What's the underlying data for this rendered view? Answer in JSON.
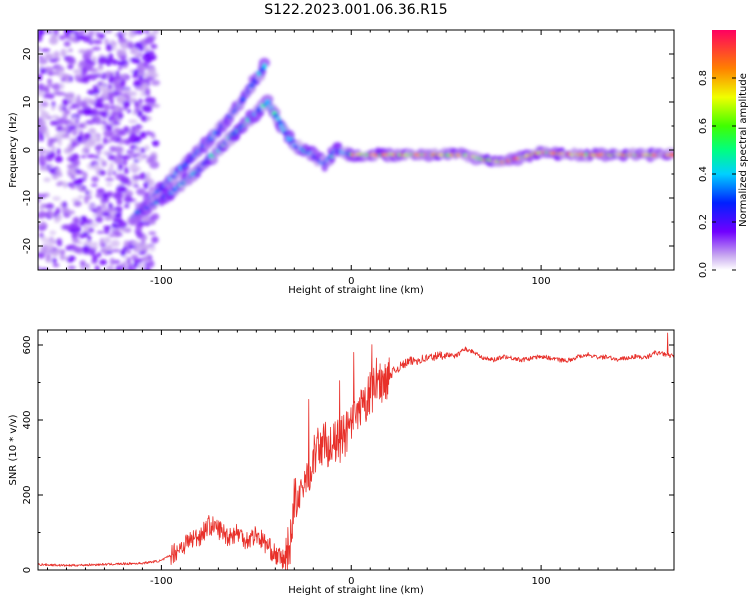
{
  "title": "S122.2023.001.06.36.R15",
  "chart_data": [
    {
      "type": "heatmap",
      "xlabel": "Height of straight line (km)",
      "ylabel": "Frequency (Hz)",
      "xlim": [
        -165,
        170
      ],
      "ylim": [
        -25,
        25
      ],
      "x_ticks": [
        -100,
        0,
        100
      ],
      "y_ticks": [
        -20,
        -10,
        0,
        10,
        20
      ],
      "colorbar": {
        "label": "Normalized spectral amplitude",
        "range": [
          0,
          1
        ],
        "ticks": [
          0.0,
          0.2,
          0.4,
          0.6,
          0.8
        ]
      },
      "ridges": [
        {
          "name": "",
          "points": [
            [
              -115,
              -14
            ],
            [
              -100,
              -8
            ],
            [
              -85,
              -2
            ],
            [
              -70,
              4
            ],
            [
              -58,
              10
            ],
            [
              -48,
              16
            ],
            [
              -45,
              18
            ]
          ]
        },
        {
          "name": "",
          "points": [
            [
              -112,
              -13
            ],
            [
              -95,
              -9
            ],
            [
              -80,
              -4
            ],
            [
              -65,
              2
            ],
            [
              -52,
              7
            ],
            [
              -44,
              10
            ],
            [
              -38,
              6
            ],
            [
              -30,
              1
            ],
            [
              -20,
              -1
            ],
            [
              -14,
              -3
            ],
            [
              -8,
              0
            ],
            [
              0,
              -1
            ],
            [
              40,
              -1
            ],
            [
              60,
              -1
            ],
            [
              70,
              -2
            ],
            [
              80,
              -2.5
            ],
            [
              90,
              -1.5
            ],
            [
              100,
              -0.5
            ],
            [
              120,
              -1
            ],
            [
              150,
              -1
            ],
            [
              170,
              -1
            ]
          ]
        }
      ],
      "noise_region_x": [
        -165,
        -115
      ]
    },
    {
      "type": "line",
      "xlabel": "Height of straight line (km)",
      "ylabel": "SNR (10 * v/v)",
      "xlim": [
        -165,
        170
      ],
      "ylim": [
        0,
        640
      ],
      "x_ticks": [
        -100,
        0,
        100
      ],
      "y_ticks": [
        0,
        200,
        400,
        600
      ],
      "color": "#e8302a",
      "series": [
        {
          "name": "",
          "x": [
            -165,
            -150,
            -130,
            -110,
            -100,
            -95,
            -90,
            -85,
            -80,
            -75,
            -70,
            -65,
            -60,
            -55,
            -50,
            -45,
            -40,
            -35,
            -32,
            -30,
            -28,
            -25,
            -20,
            -15,
            -10,
            -5,
            0,
            5,
            10,
            15,
            20,
            25,
            30,
            35,
            40,
            45,
            50,
            55,
            60,
            65,
            70,
            75,
            80,
            85,
            90,
            95,
            100,
            105,
            110,
            115,
            120,
            125,
            130,
            135,
            140,
            145,
            150,
            155,
            160,
            165,
            170
          ],
          "values": [
            15,
            12,
            15,
            18,
            25,
            40,
            60,
            80,
            90,
            120,
            110,
            90,
            100,
            80,
            95,
            70,
            40,
            25,
            80,
            200,
            160,
            220,
            300,
            340,
            330,
            350,
            380,
            420,
            470,
            500,
            520,
            540,
            555,
            560,
            565,
            570,
            575,
            570,
            590,
            580,
            565,
            560,
            570,
            565,
            560,
            565,
            570,
            565,
            560,
            560,
            570,
            575,
            565,
            570,
            560,
            565,
            570,
            565,
            580,
            575,
            570
          ]
        }
      ]
    }
  ]
}
